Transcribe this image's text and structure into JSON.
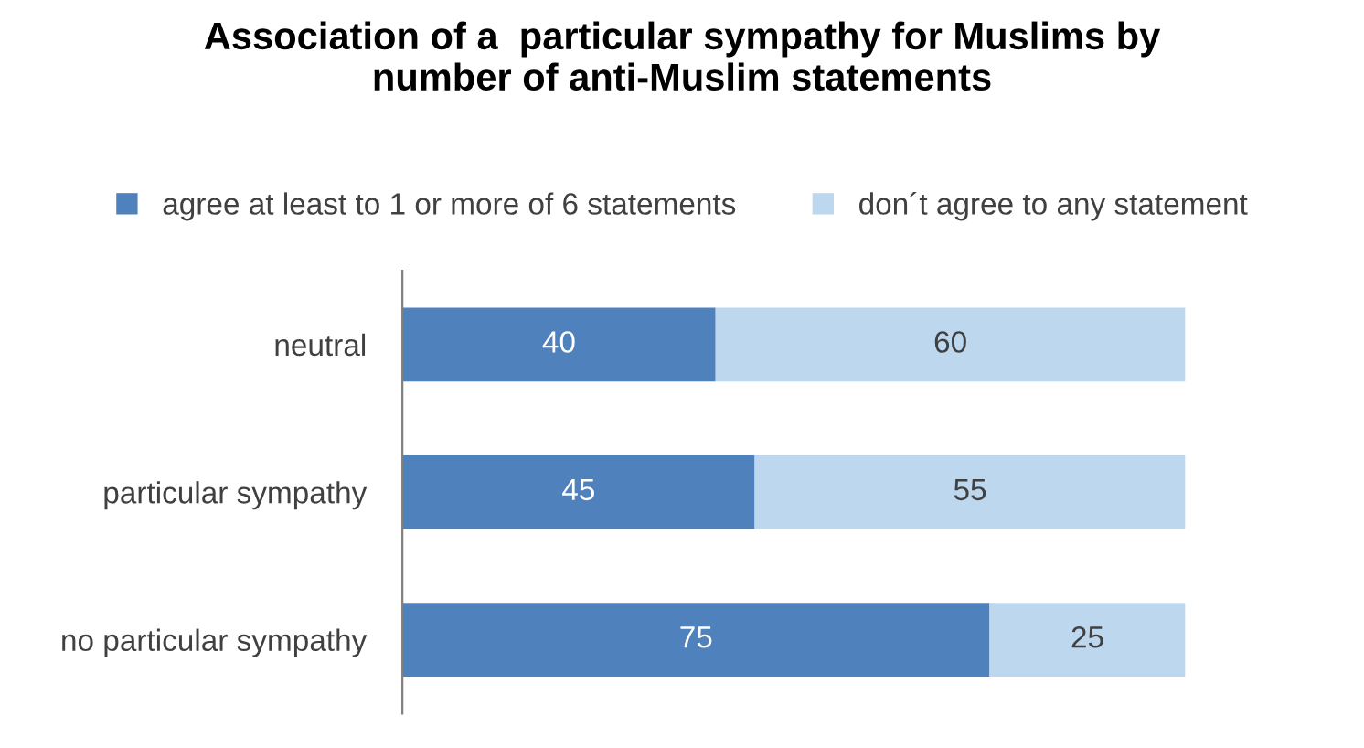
{
  "chart_data": {
    "type": "bar",
    "orientation": "horizontal",
    "stacked": true,
    "title": "Association of a  particular sympathy for Muslims by\nnumber of anti-Muslim statements",
    "categories": [
      "neutral",
      "particular sympathy",
      "no particular sympathy"
    ],
    "series": [
      {
        "name": "agree at least to 1 or more of 6 statements",
        "color": "#4f81bd",
        "values": [
          40,
          45,
          75
        ]
      },
      {
        "name": "don´t agree to any statement",
        "color": "#bdd7ee",
        "values": [
          60,
          55,
          25
        ]
      }
    ],
    "data_labels": true,
    "legend": "top",
    "grid": false,
    "tick_labels": "y"
  }
}
